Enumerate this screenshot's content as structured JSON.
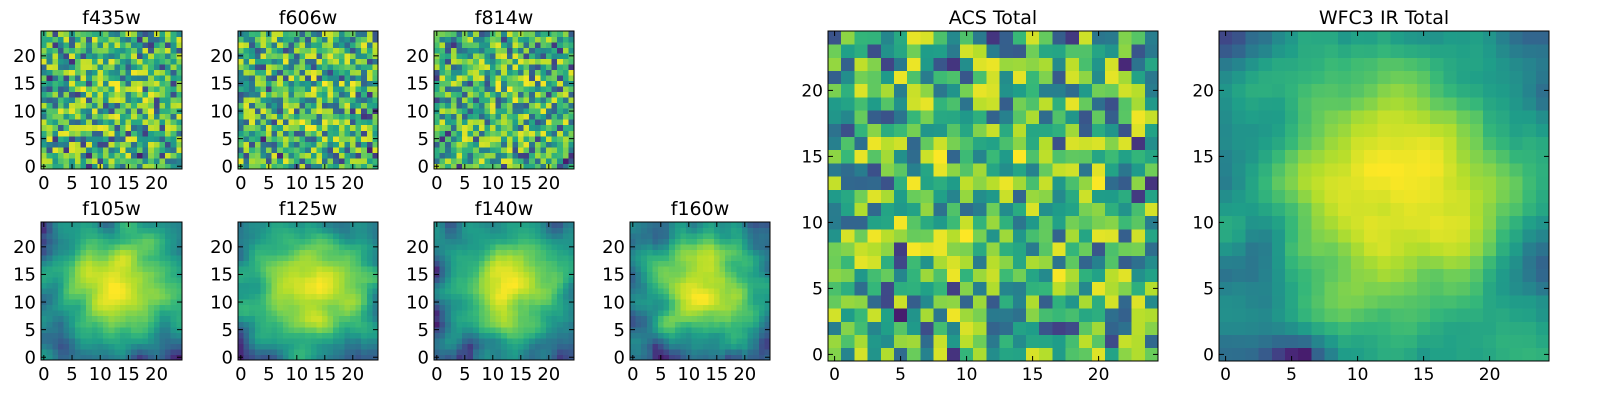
{
  "chart_data": [
    {
      "type": "heatmap",
      "title": "f435w",
      "xlim": [
        0,
        24
      ],
      "ylim": [
        0,
        24
      ],
      "xticks": [
        0,
        5,
        10,
        15,
        20
      ],
      "yticks": [
        0,
        5,
        10,
        15,
        20
      ],
      "texture": "fine-noise"
    },
    {
      "type": "heatmap",
      "title": "f606w",
      "xlim": [
        0,
        24
      ],
      "ylim": [
        0,
        24
      ],
      "xticks": [
        0,
        5,
        10,
        15,
        20
      ],
      "yticks": [
        0,
        5,
        10,
        15,
        20
      ],
      "texture": "fine-noise"
    },
    {
      "type": "heatmap",
      "title": "f814w",
      "xlim": [
        0,
        24
      ],
      "ylim": [
        0,
        24
      ],
      "xticks": [
        0,
        5,
        10,
        15,
        20
      ],
      "yticks": [
        0,
        5,
        10,
        15,
        20
      ],
      "texture": "fine-noise"
    },
    {
      "type": "heatmap",
      "title": "f105w",
      "xlim": [
        0,
        24
      ],
      "ylim": [
        0,
        24
      ],
      "xticks": [
        0,
        5,
        10,
        15,
        20
      ],
      "yticks": [
        0,
        5,
        10,
        15,
        20
      ],
      "texture": "smooth-blob"
    },
    {
      "type": "heatmap",
      "title": "f125w",
      "xlim": [
        0,
        24
      ],
      "ylim": [
        0,
        24
      ],
      "xticks": [
        0,
        5,
        10,
        15,
        20
      ],
      "yticks": [
        0,
        5,
        10,
        15,
        20
      ],
      "texture": "smooth-blob"
    },
    {
      "type": "heatmap",
      "title": "f140w",
      "xlim": [
        0,
        24
      ],
      "ylim": [
        0,
        24
      ],
      "xticks": [
        0,
        5,
        10,
        15,
        20
      ],
      "yticks": [
        0,
        5,
        10,
        15,
        20
      ],
      "texture": "smooth-blob"
    },
    {
      "type": "heatmap",
      "title": "f160w",
      "xlim": [
        0,
        24
      ],
      "ylim": [
        0,
        24
      ],
      "xticks": [
        0,
        5,
        10,
        15,
        20
      ],
      "yticks": [
        0,
        5,
        10,
        15,
        20
      ],
      "texture": "smooth-blob"
    },
    {
      "type": "heatmap",
      "title": "ACS Total",
      "xlim": [
        0,
        24
      ],
      "ylim": [
        0,
        24
      ],
      "xticks": [
        0,
        5,
        10,
        15,
        20
      ],
      "yticks": [
        0,
        5,
        10,
        15,
        20
      ],
      "texture": "coarse-noise"
    },
    {
      "type": "heatmap",
      "title": "WFC3 IR Total",
      "xlim": [
        0,
        24
      ],
      "ylim": [
        0,
        24
      ],
      "xticks": [
        0,
        5,
        10,
        15,
        20
      ],
      "yticks": [
        0,
        5,
        10,
        15,
        20
      ],
      "texture": "smooth-blob"
    }
  ],
  "colormap": "viridis",
  "colors": {
    "low": "#440154",
    "mid": "#21918c",
    "high": "#fde725",
    "frame": "#000000",
    "background": "#ffffff"
  }
}
